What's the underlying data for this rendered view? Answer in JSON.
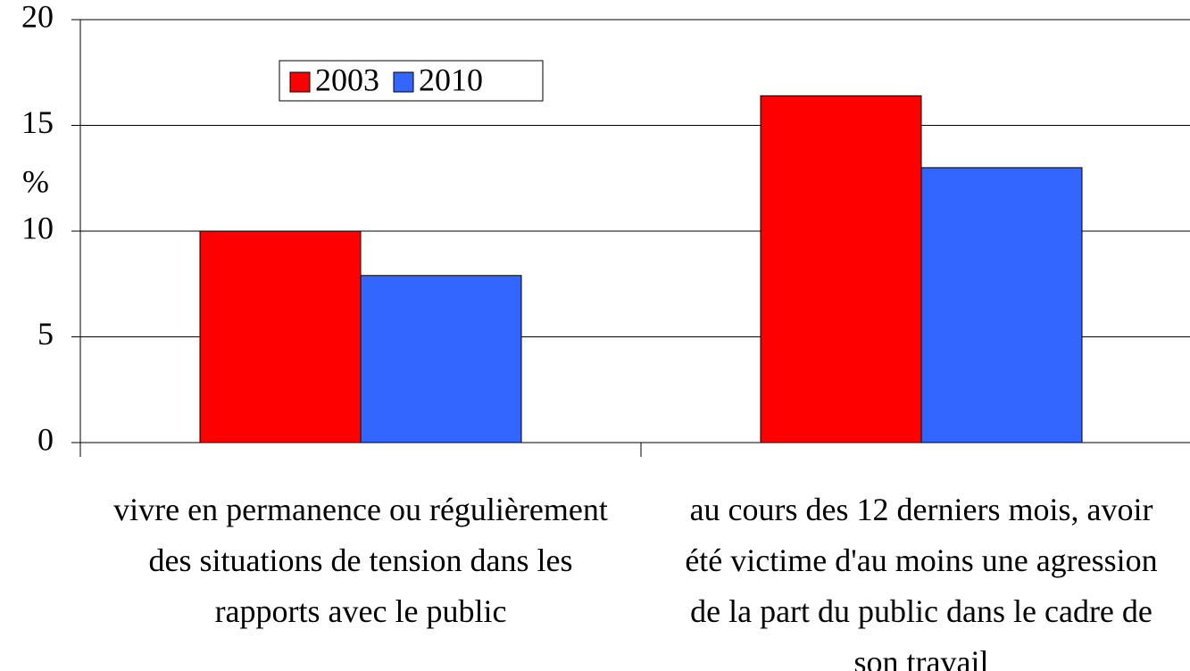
{
  "chart_data": {
    "type": "bar",
    "y_axis_label": "%",
    "categories": [
      "vivre en permanence ou régulièrement des situations de tension dans les rapports avec le public",
      "au cours des 12 derniers mois, avoir été victime d'au moins une agression de la part du public dans le cadre de son travail"
    ],
    "series": [
      {
        "name": "2003",
        "color": "#ff0000",
        "values": [
          10,
          16.4
        ]
      },
      {
        "name": "2010",
        "color": "#3366ff",
        "values": [
          7.9,
          13
        ]
      }
    ],
    "ylim": [
      0,
      20
    ],
    "yticks": [
      0,
      5,
      10,
      15,
      20
    ],
    "grid": true,
    "legend": "upper left"
  }
}
